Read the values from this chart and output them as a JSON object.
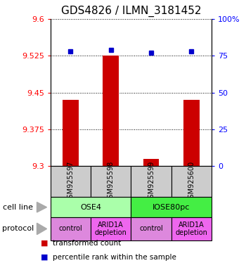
{
  "title": "GDS4826 / ILMN_3181452",
  "samples": [
    "GSM925597",
    "GSM925598",
    "GSM925599",
    "GSM925600"
  ],
  "bar_values": [
    9.435,
    9.525,
    9.315,
    9.435
  ],
  "bar_bottom": 9.3,
  "percentile_values": [
    78,
    79,
    77,
    78
  ],
  "ylim": [
    9.3,
    9.6
  ],
  "y_ticks_left": [
    9.3,
    9.375,
    9.45,
    9.525,
    9.6
  ],
  "y_ticks_right": [
    0,
    25,
    50,
    75,
    100
  ],
  "y_ticks_right_labels": [
    "0",
    "25",
    "50",
    "75",
    "100%"
  ],
  "bar_color": "#cc0000",
  "dot_color": "#0000cc",
  "cell_line_groups": [
    {
      "label": "OSE4",
      "span": [
        0,
        2
      ],
      "color": "#aaffaa"
    },
    {
      "label": "IOSE80pc",
      "span": [
        2,
        4
      ],
      "color": "#44ee44"
    }
  ],
  "protocol_groups": [
    {
      "label": "control",
      "span": [
        0,
        1
      ],
      "color": "#dd88dd"
    },
    {
      "label": "ARID1A\ndepletion",
      "span": [
        1,
        2
      ],
      "color": "#ee66ee"
    },
    {
      "label": "control",
      "span": [
        2,
        3
      ],
      "color": "#dd88dd"
    },
    {
      "label": "ARID1A\ndepletion",
      "span": [
        3,
        4
      ],
      "color": "#ee66ee"
    }
  ],
  "sample_box_color": "#cccccc",
  "legend_items": [
    {
      "color": "#cc0000",
      "label": "transformed count"
    },
    {
      "color": "#0000cc",
      "label": "percentile rank within the sample"
    }
  ],
  "cell_line_label": "cell line",
  "protocol_label": "protocol",
  "title_fontsize": 11,
  "tick_fontsize": 8,
  "label_fontsize": 9,
  "bar_width": 0.4
}
